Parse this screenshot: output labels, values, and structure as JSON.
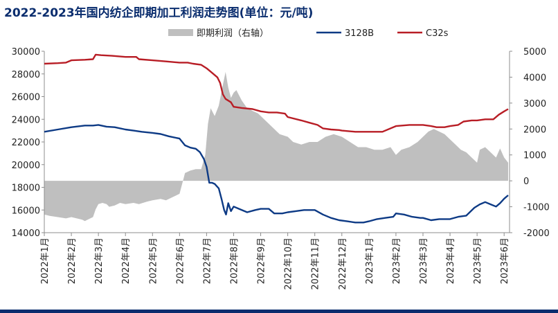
{
  "chart_data": {
    "type": "area+line",
    "title": "2022-2023年国内纺企即期加工利润走势图(单位：元/吨)",
    "xlabel": "",
    "ylabel": "",
    "x_ticks": [
      "2022年1月",
      "2022年2月",
      "2022年3月",
      "2022年4月",
      "2022年5月",
      "2022年6月",
      "2022年7月",
      "2022年8月",
      "2022年9月",
      "2022年10月",
      "2022年11月",
      "2022年12月",
      "2023年1月",
      "2023年2月",
      "2023年3月",
      "2023年4月",
      "2023年5月",
      "2023年6月"
    ],
    "y_left": {
      "min": 14000,
      "max": 30000,
      "ticks": [
        14000,
        16000,
        18000,
        20000,
        22000,
        24000,
        26000,
        28000,
        30000
      ]
    },
    "y_right": {
      "min": -2000,
      "max": 5000,
      "ticks": [
        -2000,
        -1000,
        0,
        1000,
        2000,
        3000,
        4000,
        5000
      ]
    },
    "legend_position": "top-center",
    "series": [
      {
        "name": "即期利润（右轴）",
        "kind": "area",
        "axis": "right",
        "color": "#bfbfbf",
        "points": [
          [
            0,
            -1300
          ],
          [
            0.2,
            -1350
          ],
          [
            0.5,
            -1400
          ],
          [
            0.8,
            -1450
          ],
          [
            1.0,
            -1400
          ],
          [
            1.2,
            -1450
          ],
          [
            1.4,
            -1500
          ],
          [
            1.5,
            -1550
          ],
          [
            1.6,
            -1500
          ],
          [
            1.8,
            -1400
          ],
          [
            1.9,
            -1100
          ],
          [
            2.0,
            -900
          ],
          [
            2.15,
            -850
          ],
          [
            2.3,
            -900
          ],
          [
            2.4,
            -1000
          ],
          [
            2.6,
            -950
          ],
          [
            2.8,
            -850
          ],
          [
            3.0,
            -900
          ],
          [
            3.3,
            -850
          ],
          [
            3.5,
            -900
          ],
          [
            3.8,
            -800
          ],
          [
            4.0,
            -750
          ],
          [
            4.3,
            -700
          ],
          [
            4.5,
            -750
          ],
          [
            4.8,
            -600
          ],
          [
            5.0,
            -500
          ],
          [
            5.1,
            -100
          ],
          [
            5.2,
            300
          ],
          [
            5.4,
            400
          ],
          [
            5.6,
            450
          ],
          [
            5.8,
            450
          ],
          [
            5.95,
            1000
          ],
          [
            6.05,
            2200
          ],
          [
            6.15,
            2800
          ],
          [
            6.3,
            2500
          ],
          [
            6.45,
            2900
          ],
          [
            6.6,
            3700
          ],
          [
            6.7,
            4200
          ],
          [
            6.8,
            3600
          ],
          [
            6.9,
            3200
          ],
          [
            7.0,
            3400
          ],
          [
            7.1,
            3500
          ],
          [
            7.3,
            3100
          ],
          [
            7.5,
            2800
          ],
          [
            7.7,
            2700
          ],
          [
            7.9,
            2600
          ],
          [
            8.1,
            2400
          ],
          [
            8.3,
            2200
          ],
          [
            8.5,
            2000
          ],
          [
            8.7,
            1800
          ],
          [
            9.0,
            1700
          ],
          [
            9.2,
            1500
          ],
          [
            9.5,
            1400
          ],
          [
            9.8,
            1500
          ],
          [
            10.1,
            1500
          ],
          [
            10.4,
            1700
          ],
          [
            10.7,
            1800
          ],
          [
            11.0,
            1700
          ],
          [
            11.3,
            1500
          ],
          [
            11.6,
            1300
          ],
          [
            11.9,
            1300
          ],
          [
            12.2,
            1200
          ],
          [
            12.5,
            1200
          ],
          [
            12.8,
            1300
          ],
          [
            13.0,
            1000
          ],
          [
            13.2,
            1200
          ],
          [
            13.5,
            1300
          ],
          [
            13.8,
            1500
          ],
          [
            14.0,
            1700
          ],
          [
            14.2,
            1900
          ],
          [
            14.4,
            2000
          ],
          [
            14.6,
            1900
          ],
          [
            14.8,
            1800
          ],
          [
            15.0,
            1600
          ],
          [
            15.2,
            1400
          ],
          [
            15.4,
            1200
          ],
          [
            15.6,
            1100
          ],
          [
            15.8,
            900
          ],
          [
            16.0,
            700
          ],
          [
            16.1,
            1200
          ],
          [
            16.3,
            1300
          ],
          [
            16.5,
            1100
          ],
          [
            16.7,
            900
          ],
          [
            16.85,
            1250
          ],
          [
            17.0,
            900
          ],
          [
            17.15,
            700
          ]
        ]
      },
      {
        "name": "3128B",
        "kind": "line",
        "axis": "left",
        "color": "#0d3a85",
        "points": [
          [
            0,
            22900
          ],
          [
            0.5,
            23100
          ],
          [
            1.0,
            23300
          ],
          [
            1.5,
            23450
          ],
          [
            1.8,
            23450
          ],
          [
            2.0,
            23500
          ],
          [
            2.3,
            23350
          ],
          [
            2.6,
            23300
          ],
          [
            3.0,
            23100
          ],
          [
            3.3,
            23000
          ],
          [
            3.6,
            22900
          ],
          [
            4.0,
            22800
          ],
          [
            4.3,
            22700
          ],
          [
            4.6,
            22500
          ],
          [
            5.0,
            22300
          ],
          [
            5.2,
            21700
          ],
          [
            5.4,
            21500
          ],
          [
            5.6,
            21400
          ],
          [
            5.75,
            21100
          ],
          [
            5.9,
            20500
          ],
          [
            6.0,
            19800
          ],
          [
            6.1,
            18400
          ],
          [
            6.2,
            18400
          ],
          [
            6.3,
            18300
          ],
          [
            6.45,
            17900
          ],
          [
            6.55,
            17000
          ],
          [
            6.65,
            16000
          ],
          [
            6.72,
            15600
          ],
          [
            6.8,
            16600
          ],
          [
            6.9,
            15900
          ],
          [
            7.0,
            16300
          ],
          [
            7.2,
            16100
          ],
          [
            7.5,
            15800
          ],
          [
            7.8,
            16000
          ],
          [
            8.0,
            16100
          ],
          [
            8.3,
            16100
          ],
          [
            8.5,
            15700
          ],
          [
            8.8,
            15700
          ],
          [
            9.0,
            15800
          ],
          [
            9.3,
            15900
          ],
          [
            9.6,
            16000
          ],
          [
            10.0,
            16000
          ],
          [
            10.3,
            15600
          ],
          [
            10.6,
            15300
          ],
          [
            10.9,
            15100
          ],
          [
            11.2,
            15000
          ],
          [
            11.5,
            14900
          ],
          [
            11.8,
            14900
          ],
          [
            12.0,
            15000
          ],
          [
            12.3,
            15200
          ],
          [
            12.6,
            15300
          ],
          [
            12.9,
            15400
          ],
          [
            13.0,
            15700
          ],
          [
            13.3,
            15600
          ],
          [
            13.6,
            15400
          ],
          [
            13.9,
            15300
          ],
          [
            14.0,
            15300
          ],
          [
            14.3,
            15100
          ],
          [
            14.6,
            15200
          ],
          [
            14.8,
            15200
          ],
          [
            15.0,
            15200
          ],
          [
            15.3,
            15400
          ],
          [
            15.6,
            15500
          ],
          [
            15.9,
            16200
          ],
          [
            16.1,
            16500
          ],
          [
            16.3,
            16700
          ],
          [
            16.5,
            16500
          ],
          [
            16.7,
            16300
          ],
          [
            16.85,
            16600
          ],
          [
            17.0,
            17000
          ],
          [
            17.15,
            17300
          ]
        ]
      },
      {
        "name": "C32s",
        "kind": "line",
        "axis": "left",
        "color": "#b81d25",
        "points": [
          [
            0,
            28900
          ],
          [
            0.5,
            28950
          ],
          [
            0.8,
            29000
          ],
          [
            1.0,
            29200
          ],
          [
            1.5,
            29250
          ],
          [
            1.8,
            29300
          ],
          [
            1.9,
            29700
          ],
          [
            2.1,
            29650
          ],
          [
            2.5,
            29600
          ],
          [
            3.0,
            29500
          ],
          [
            3.4,
            29500
          ],
          [
            3.5,
            29300
          ],
          [
            4.0,
            29200
          ],
          [
            4.5,
            29100
          ],
          [
            5.0,
            29000
          ],
          [
            5.3,
            29000
          ],
          [
            5.5,
            28900
          ],
          [
            5.8,
            28800
          ],
          [
            6.0,
            28500
          ],
          [
            6.2,
            28100
          ],
          [
            6.4,
            27700
          ],
          [
            6.5,
            27200
          ],
          [
            6.6,
            26200
          ],
          [
            6.7,
            25800
          ],
          [
            6.9,
            25500
          ],
          [
            7.0,
            25100
          ],
          [
            7.3,
            25000
          ],
          [
            7.7,
            24900
          ],
          [
            8.0,
            24700
          ],
          [
            8.3,
            24600
          ],
          [
            8.6,
            24600
          ],
          [
            8.9,
            24500
          ],
          [
            9.0,
            24200
          ],
          [
            9.5,
            23900
          ],
          [
            9.8,
            23700
          ],
          [
            10.1,
            23500
          ],
          [
            10.3,
            23200
          ],
          [
            10.6,
            23100
          ],
          [
            10.9,
            23050
          ],
          [
            11.0,
            23000
          ],
          [
            11.5,
            22900
          ],
          [
            12.0,
            22900
          ],
          [
            12.5,
            22900
          ],
          [
            13.0,
            23400
          ],
          [
            13.5,
            23500
          ],
          [
            14.0,
            23500
          ],
          [
            14.3,
            23400
          ],
          [
            14.5,
            23300
          ],
          [
            14.8,
            23300
          ],
          [
            15.0,
            23400
          ],
          [
            15.3,
            23500
          ],
          [
            15.5,
            23800
          ],
          [
            15.8,
            23900
          ],
          [
            16.0,
            23900
          ],
          [
            16.3,
            24000
          ],
          [
            16.6,
            24000
          ],
          [
            16.8,
            24400
          ],
          [
            17.0,
            24700
          ],
          [
            17.15,
            24900
          ]
        ]
      }
    ]
  }
}
